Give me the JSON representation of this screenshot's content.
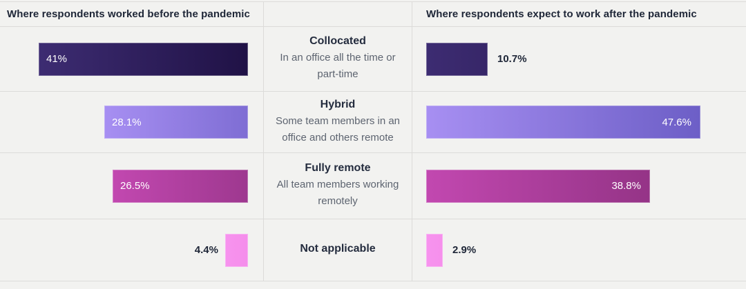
{
  "chart_data": {
    "type": "bar",
    "orientation": "horizontal",
    "categories": [
      "Collocated",
      "Hybrid",
      "Fully remote",
      "Not applicable"
    ],
    "category_descriptions": [
      "In an office all the time or part-time",
      "Some team members in an office and others remote",
      "All team members working remotely",
      ""
    ],
    "series": [
      {
        "name": "Where respondents worked before the pandemic",
        "values": [
          41,
          28.1,
          26.5,
          4.4
        ],
        "labels": [
          "41%",
          "28.1%",
          "26.5%",
          "4.4%"
        ]
      },
      {
        "name": "Where respondents expect to work after the pandemic",
        "values": [
          10.7,
          47.6,
          38.8,
          2.9
        ],
        "labels": [
          "10.7%",
          "47.6%",
          "38.8%",
          "2.9%"
        ]
      }
    ],
    "xlim": [
      0,
      50
    ],
    "grid": false,
    "legend": "none",
    "value_label_rule": "inside bar if value >= 15, outside (bold dark) otherwise"
  },
  "colors": {
    "background": "#f2f2f0",
    "divider": "#dcdbd9",
    "header_text": "#1e2637",
    "category_title_text": "#242c3e",
    "category_description_text": "#5d6470",
    "label_inside": "#ffffff",
    "label_outside": "#1e2637",
    "bar_gradients": [
      {
        "start": "#3d2c72",
        "end": "#201246"
      },
      {
        "start": "#a78ff2",
        "end": "#6c5ec6"
      },
      {
        "start": "#c248b0",
        "end": "#8a2f7d"
      },
      {
        "start": "#f793ee",
        "end": "#df5fd0"
      }
    ]
  }
}
